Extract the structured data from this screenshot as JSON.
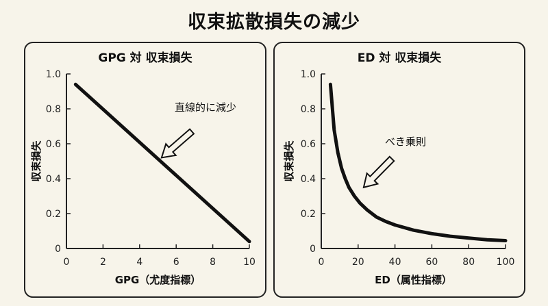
{
  "title": "収束拡散損失の減少",
  "chart_data": [
    {
      "type": "line",
      "title": "GPG 対 収束損失",
      "xlabel": "GPG（尤度指標）",
      "ylabel": "収束損失",
      "xlim": [
        0,
        10
      ],
      "ylim": [
        0,
        1.0
      ],
      "xticks": [
        0,
        2,
        4,
        6,
        8,
        10
      ],
      "yticks": [
        0,
        0.2,
        0.4,
        0.6,
        0.8,
        1.0
      ],
      "ytick_labels": [
        "0",
        "0.2",
        "0.4",
        "0.6",
        "0.8",
        "1.0"
      ],
      "grid": false,
      "series": [
        {
          "x": [
            0.5,
            10
          ],
          "y": [
            0.94,
            0.04
          ],
          "color": "#111111"
        }
      ],
      "annotation": {
        "text": "直線的に減少",
        "point": [
          5.2,
          0.52
        ]
      }
    },
    {
      "type": "line",
      "title": "ED 対 収束損失",
      "xlabel": "ED（属性指標）",
      "ylabel": "収束損失",
      "xlim": [
        0,
        100
      ],
      "ylim": [
        0,
        1.0
      ],
      "xticks": [
        0,
        20,
        40,
        60,
        80,
        100
      ],
      "yticks": [
        0,
        0.2,
        0.4,
        0.6,
        0.8,
        1.0
      ],
      "ytick_labels": [
        "0",
        "0.2",
        "0.4",
        "0.6",
        "0.8",
        "1.0"
      ],
      "grid": false,
      "series": [
        {
          "x": [
            5,
            7,
            9,
            11,
            13,
            15,
            18,
            21,
            25,
            30,
            35,
            40,
            50,
            60,
            70,
            80,
            90,
            100
          ],
          "y": [
            0.94,
            0.68,
            0.55,
            0.46,
            0.4,
            0.35,
            0.3,
            0.26,
            0.22,
            0.18,
            0.155,
            0.135,
            0.105,
            0.085,
            0.07,
            0.06,
            0.05,
            0.045
          ],
          "color": "#111111"
        }
      ],
      "annotation": {
        "text": "べき乗則",
        "point": [
          23,
          0.35
        ]
      }
    }
  ]
}
